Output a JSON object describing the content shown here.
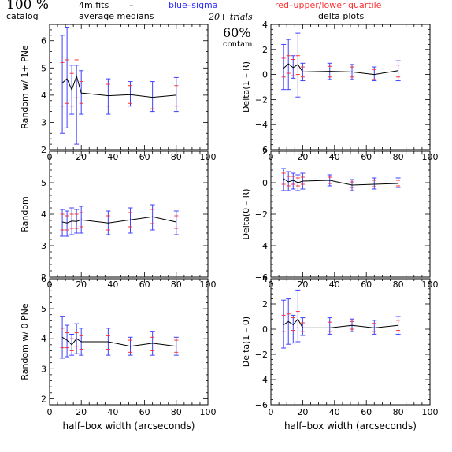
{
  "header": {
    "percent": "100 %",
    "catalog": "catalog",
    "filename": "4m.fits",
    "dash": "–",
    "average_medians": "average medians",
    "blue_sigma": "blue–sigma",
    "red_quartile": "red–upper/lower quartile",
    "trials": "20+ trials",
    "contam_percent": "60%",
    "contam_label": "contam.",
    "delta_plots": "delta plots"
  },
  "colors": {
    "line": "#000000",
    "sigma": "#4040ff",
    "quartile": "#ff3030"
  },
  "chart_data": [
    {
      "type": "line",
      "panel": "left-1",
      "ylabel": "Random w/ 1+ PNe",
      "xlabel": "",
      "xlim": [
        0,
        100
      ],
      "ylim": [
        2,
        6.6
      ],
      "x_ticks": [
        "0",
        "20",
        "40",
        "60",
        "80",
        "100"
      ],
      "y_ticks": [
        "2",
        "3",
        "4",
        "5",
        "6"
      ],
      "x": [
        8,
        11,
        14,
        17,
        20,
        37,
        51,
        65,
        80
      ],
      "values": [
        4.45,
        4.6,
        4.2,
        4.7,
        4.08,
        3.98,
        4.02,
        3.92,
        4.0
      ],
      "sigma": [
        [
          2.6,
          6.2
        ],
        [
          2.8,
          6.5
        ],
        [
          3.3,
          5.1
        ],
        [
          2.2,
          5.1
        ],
        [
          3.3,
          4.9
        ],
        [
          3.3,
          4.6
        ],
        [
          3.6,
          4.5
        ],
        [
          3.4,
          4.5
        ],
        [
          3.4,
          4.65
        ]
      ],
      "quartile": [
        [
          3.6,
          5.2
        ],
        [
          3.7,
          5.3
        ],
        [
          3.6,
          4.8
        ],
        [
          3.9,
          5.3
        ],
        [
          3.7,
          4.5
        ],
        [
          3.6,
          4.4
        ],
        [
          3.7,
          4.35
        ],
        [
          3.5,
          4.3
        ],
        [
          3.6,
          4.35
        ]
      ]
    },
    {
      "type": "line",
      "panel": "right-1",
      "ylabel": "Delta(1 – R)",
      "xlabel": "",
      "xlim": [
        0,
        100
      ],
      "ylim": [
        -6,
        4
      ],
      "x_ticks": [
        "0",
        "20",
        "40",
        "60",
        "80",
        "100"
      ],
      "y_ticks": [
        "−6",
        "−4",
        "−2",
        "0",
        "2",
        "4"
      ],
      "x": [
        8,
        11,
        14,
        17,
        20,
        37,
        51,
        65,
        80
      ],
      "values": [
        0.5,
        0.85,
        0.55,
        0.8,
        0.2,
        0.25,
        0.2,
        0.0,
        0.3
      ],
      "sigma": [
        [
          -1.2,
          2.4
        ],
        [
          -1.2,
          2.8
        ],
        [
          -0.3,
          1.5
        ],
        [
          -1.8,
          3.3
        ],
        [
          -0.5,
          0.9
        ],
        [
          -0.4,
          0.9
        ],
        [
          -0.4,
          0.8
        ],
        [
          -0.5,
          0.6
        ],
        [
          -0.5,
          1.1
        ]
      ],
      "quartile": [
        [
          -0.2,
          1.3
        ],
        [
          0.1,
          1.5
        ],
        [
          -0.1,
          1.2
        ],
        [
          0.0,
          1.5
        ],
        [
          -0.2,
          0.6
        ],
        [
          -0.2,
          0.65
        ],
        [
          -0.2,
          0.6
        ],
        [
          -0.4,
          0.4
        ],
        [
          -0.2,
          0.75
        ]
      ]
    },
    {
      "type": "line",
      "panel": "left-2",
      "ylabel": "Random",
      "xlabel": "",
      "xlim": [
        0,
        100
      ],
      "ylim": [
        2,
        6
      ],
      "x_ticks": [
        "0",
        "20",
        "40",
        "60",
        "80",
        "100"
      ],
      "y_ticks": [
        "2",
        "3",
        "4",
        "5"
      ],
      "x": [
        8,
        11,
        14,
        17,
        20,
        37,
        51,
        65,
        80
      ],
      "values": [
        3.75,
        3.72,
        3.78,
        3.77,
        3.82,
        3.72,
        3.82,
        3.92,
        3.75
      ],
      "sigma": [
        [
          3.3,
          4.15
        ],
        [
          3.3,
          4.1
        ],
        [
          3.35,
          4.2
        ],
        [
          3.4,
          4.15
        ],
        [
          3.4,
          4.25
        ],
        [
          3.35,
          4.1
        ],
        [
          3.4,
          4.2
        ],
        [
          3.5,
          4.3
        ],
        [
          3.35,
          4.1
        ]
      ],
      "quartile": [
        [
          3.5,
          4.0
        ],
        [
          3.5,
          3.95
        ],
        [
          3.55,
          4.0
        ],
        [
          3.55,
          4.0
        ],
        [
          3.6,
          4.05
        ],
        [
          3.5,
          3.95
        ],
        [
          3.6,
          4.05
        ],
        [
          3.7,
          4.15
        ],
        [
          3.55,
          3.95
        ]
      ]
    },
    {
      "type": "line",
      "panel": "right-2",
      "ylabel": "Delta(0 – R)",
      "xlabel": "",
      "xlim": [
        0,
        100
      ],
      "ylim": [
        -6,
        2
      ],
      "x_ticks": [
        "0",
        "20",
        "40",
        "60",
        "80",
        "100"
      ],
      "y_ticks": [
        "−6",
        "−4",
        "−2",
        "0",
        "2"
      ],
      "x": [
        8,
        11,
        14,
        17,
        20,
        37,
        51,
        65,
        80
      ],
      "values": [
        0.25,
        0.05,
        0.15,
        0.0,
        0.1,
        0.15,
        -0.15,
        -0.1,
        -0.05
      ],
      "sigma": [
        [
          -0.5,
          0.9
        ],
        [
          -0.5,
          0.7
        ],
        [
          -0.4,
          0.6
        ],
        [
          -0.5,
          0.5
        ],
        [
          -0.4,
          0.6
        ],
        [
          -0.2,
          0.5
        ],
        [
          -0.5,
          0.2
        ],
        [
          -0.4,
          0.3
        ],
        [
          -0.3,
          0.3
        ]
      ],
      "quartile": [
        [
          -0.1,
          0.6
        ],
        [
          -0.2,
          0.4
        ],
        [
          -0.1,
          0.4
        ],
        [
          -0.2,
          0.3
        ],
        [
          -0.1,
          0.35
        ],
        [
          -0.05,
          0.35
        ],
        [
          -0.3,
          0.05
        ],
        [
          -0.25,
          0.15
        ],
        [
          -0.2,
          0.15
        ]
      ]
    },
    {
      "type": "line",
      "panel": "left-3",
      "ylabel": "Random w/ 0 PNe",
      "xlabel": "half–box width (arcseconds)",
      "xlim": [
        0,
        100
      ],
      "ylim": [
        1.8,
        6
      ],
      "x_ticks": [
        "0",
        "20",
        "40",
        "60",
        "80",
        "100"
      ],
      "y_ticks": [
        "2",
        "3",
        "4",
        "5",
        "6"
      ],
      "x": [
        8,
        11,
        14,
        17,
        20,
        37,
        51,
        65,
        80
      ],
      "values": [
        4.05,
        3.95,
        3.8,
        4.0,
        3.9,
        3.9,
        3.75,
        3.85,
        3.75
      ],
      "sigma": [
        [
          3.35,
          4.75
        ],
        [
          3.4,
          4.45
        ],
        [
          3.45,
          4.15
        ],
        [
          3.5,
          4.5
        ],
        [
          3.45,
          4.35
        ],
        [
          3.45,
          4.35
        ],
        [
          3.45,
          4.05
        ],
        [
          3.45,
          4.25
        ],
        [
          3.45,
          4.05
        ]
      ],
      "quartile": [
        [
          3.7,
          4.35
        ],
        [
          3.7,
          4.2
        ],
        [
          3.6,
          4.0
        ],
        [
          3.75,
          4.2
        ],
        [
          3.65,
          4.1
        ],
        [
          3.65,
          4.1
        ],
        [
          3.55,
          3.95
        ],
        [
          3.6,
          4.05
        ],
        [
          3.55,
          3.95
        ]
      ]
    },
    {
      "type": "line",
      "panel": "right-3",
      "ylabel": "Delta(1 – 0)",
      "xlabel": "half–box width (arcseconds)",
      "xlim": [
        0,
        100
      ],
      "ylim": [
        -6,
        4
      ],
      "x_ticks": [
        "0",
        "20",
        "40",
        "60",
        "80",
        "100"
      ],
      "y_ticks": [
        "−6",
        "−4",
        "−2",
        "0",
        "2",
        "4"
      ],
      "x": [
        8,
        11,
        14,
        17,
        20,
        37,
        51,
        65,
        80
      ],
      "values": [
        0.35,
        0.6,
        0.35,
        0.8,
        0.1,
        0.1,
        0.3,
        0.1,
        0.3
      ],
      "sigma": [
        [
          -1.5,
          2.3
        ],
        [
          -1.2,
          2.4
        ],
        [
          -1.1,
          1.1
        ],
        [
          -1.0,
          3.1
        ],
        [
          -0.5,
          0.9
        ],
        [
          -0.4,
          0.9
        ],
        [
          -0.2,
          0.8
        ],
        [
          -0.4,
          0.7
        ],
        [
          -0.4,
          1.0
        ]
      ],
      "quartile": [
        [
          -0.2,
          1.1
        ],
        [
          0.1,
          1.2
        ],
        [
          -0.1,
          0.9
        ],
        [
          0.1,
          1.4
        ],
        [
          -0.2,
          0.5
        ],
        [
          -0.2,
          0.55
        ],
        [
          0.0,
          0.6
        ],
        [
          -0.2,
          0.45
        ],
        [
          -0.1,
          0.7
        ]
      ]
    }
  ]
}
